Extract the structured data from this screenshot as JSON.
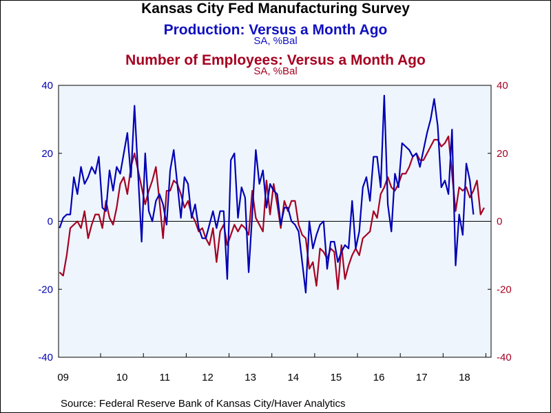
{
  "titles": {
    "main": "Kansas City Fed Manufacturing Survey",
    "series1_title": "Production: Versus a Month Ago",
    "series1_sub": "SA, %Bal",
    "series2_title": "Number of Employees: Versus a Month Ago",
    "series2_sub": "SA, %Bal"
  },
  "source": "Source:  Federal Reserve Bank of Kansas City/Haver Analytics",
  "colors": {
    "production": "#0000b3",
    "employees": "#a50021",
    "plot_bg": "#eef5fd",
    "zero_line": "#000000"
  },
  "chart_data": {
    "type": "line",
    "frequency": "monthly",
    "x_start": "2009-01",
    "xlabels": [
      "09",
      "10",
      "11",
      "12",
      "13",
      "14",
      "15",
      "16",
      "17",
      "18"
    ],
    "ylim": [
      -40,
      40
    ],
    "yticks": [
      -40,
      -20,
      0,
      20,
      40
    ],
    "left_axis_color": "#0000b3",
    "right_axis_color": "#a50021",
    "zero_line": true,
    "grid": false,
    "series": [
      {
        "name": "Production: Versus a Month Ago",
        "units": "SA, %Bal",
        "axis": "left",
        "values": [
          -2,
          1,
          2,
          2,
          13,
          8,
          16,
          11,
          13,
          16,
          14,
          19,
          4,
          3,
          15,
          9,
          16,
          14,
          20,
          26,
          13,
          34,
          14,
          -6,
          20,
          3,
          0,
          6,
          8,
          5,
          -1,
          15,
          21,
          11,
          1,
          13,
          11,
          1,
          5,
          -2,
          -5,
          -5,
          -1,
          3,
          -2,
          3,
          3,
          -17,
          18,
          20,
          1,
          10,
          7,
          -15,
          2,
          21,
          11,
          15,
          4,
          11,
          9,
          8,
          -1,
          4,
          4,
          0,
          -1,
          -3,
          -12,
          -21,
          0,
          -8,
          -4,
          -1,
          0,
          -14,
          -6,
          -6,
          -12,
          -9,
          -7,
          -8,
          6,
          -8,
          -3,
          10,
          13,
          6,
          19,
          19,
          10,
          37,
          5,
          -3,
          14,
          10,
          23,
          22,
          21,
          19,
          20,
          16,
          21,
          26,
          30,
          36,
          28,
          10,
          12,
          8,
          27,
          -13,
          2,
          -4,
          17,
          12,
          2
        ],
        "values_note": ""
      },
      {
        "name": "Number of Employees: Versus a Month Ago",
        "units": "SA, %Bal",
        "axis": "right",
        "values": [
          -15,
          -16,
          -10,
          -2,
          -1,
          0,
          -2,
          3,
          -5,
          -1,
          2,
          2,
          -2,
          6,
          1,
          -1,
          4,
          11,
          13,
          8,
          16,
          20,
          15,
          10,
          5,
          9,
          12,
          16,
          6,
          -5,
          9,
          9,
          12,
          11,
          8,
          4,
          6,
          2,
          0,
          -3,
          -2,
          -5,
          -7,
          -2,
          -12,
          -3,
          -1,
          -7,
          -4,
          -1,
          -3,
          -1,
          -2,
          -4,
          9,
          1,
          -1,
          -3,
          12,
          2,
          11,
          5,
          -2,
          6,
          3,
          6,
          6,
          -1,
          -4,
          -5,
          -14,
          -12,
          -19,
          -8,
          -9,
          -11,
          -8,
          -9,
          -20,
          -7,
          -17,
          -13,
          -10,
          -8,
          -10,
          -5,
          -4,
          -3,
          3,
          1,
          8,
          10,
          13,
          10,
          9,
          11,
          14,
          14,
          16,
          19,
          20,
          18,
          18,
          20,
          22,
          24,
          24,
          22,
          23,
          25,
          14,
          3,
          10,
          9,
          10,
          7,
          9,
          12,
          2,
          4
        ],
        "values_note": ""
      }
    ]
  }
}
